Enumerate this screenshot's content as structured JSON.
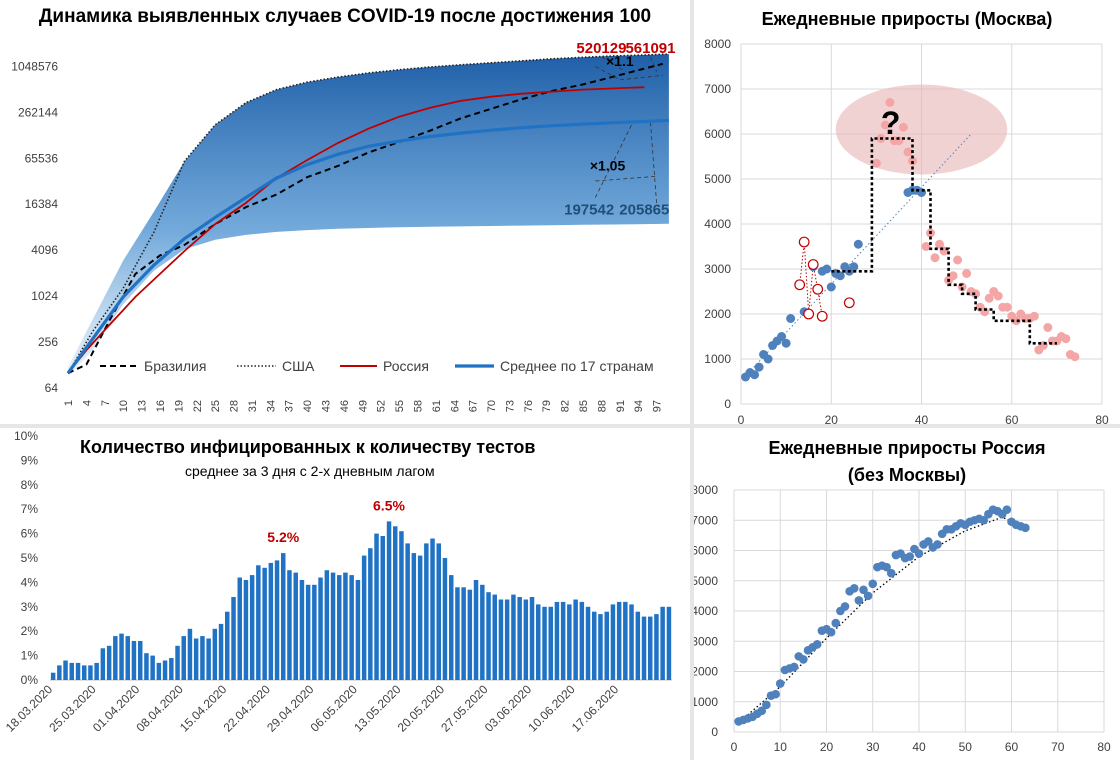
{
  "chart_data": [
    {
      "id": "chart1",
      "type": "line",
      "title": "Динамика выявленных случаев COVID-19 после достижения 100",
      "y_scale": "log2",
      "ylim": [
        64,
        2000000
      ],
      "y_ticks": [
        "64",
        "256",
        "1024",
        "4096",
        "16384",
        "65536",
        "262144",
        "1048576"
      ],
      "y_tick_values": [
        64,
        256,
        1024,
        4096,
        16384,
        65536,
        262144,
        1048576
      ],
      "x_ticks": [
        "1",
        "4",
        "7",
        "10",
        "13",
        "16",
        "19",
        "22",
        "25",
        "28",
        "31",
        "34",
        "37",
        "40",
        "43",
        "46",
        "49",
        "52",
        "55",
        "58",
        "61",
        "64",
        "67",
        "70",
        "73",
        "76",
        "79",
        "82",
        "85",
        "88",
        "91",
        "94",
        "97"
      ],
      "xlim": [
        1,
        100
      ],
      "band": {
        "x": [
          1,
          5,
          10,
          15,
          20,
          25,
          30,
          35,
          40,
          45,
          50,
          55,
          60,
          65,
          70,
          75,
          80,
          85,
          90,
          95,
          99
        ],
        "low": [
          90,
          200,
          800,
          2200,
          4200,
          5600,
          6500,
          7100,
          7500,
          7800,
          8000,
          8200,
          8300,
          8400,
          8500,
          8600,
          8700,
          8800,
          8900,
          9000,
          9100
        ],
        "high": [
          120,
          500,
          3000,
          13000,
          60000,
          180000,
          350000,
          520000,
          650000,
          760000,
          860000,
          950000,
          1030000,
          1100000,
          1170000,
          1240000,
          1320000,
          1380000,
          1440000,
          1480000,
          1520000
        ]
      },
      "series": [
        {
          "name": "Бразилия",
          "color": "#000000",
          "style": "dashed",
          "x": [
            1,
            4,
            8,
            12,
            16,
            20,
            25,
            30,
            35,
            40,
            45,
            50,
            55,
            60,
            65,
            70,
            75,
            80,
            85,
            90,
            95,
            98
          ],
          "y": [
            100,
            130,
            530,
            2000,
            3500,
            4800,
            9000,
            15000,
            22000,
            37000,
            52000,
            78000,
            107000,
            150000,
            218000,
            292000,
            390000,
            500000,
            610000,
            770000,
            980000,
            1130000
          ]
        },
        {
          "name": "США",
          "color": "#222222",
          "style": "dotted",
          "x": [
            1,
            5,
            10,
            15,
            20,
            25,
            30,
            35,
            40,
            45,
            50,
            55,
            60,
            65,
            70,
            75,
            80,
            85,
            90,
            95,
            99
          ],
          "y": [
            100,
            350,
            1300,
            7000,
            60000,
            180000,
            350000,
            520000,
            650000,
            760000,
            860000,
            950000,
            1030000,
            1100000,
            1170000,
            1240000,
            1320000,
            1380000,
            1440000,
            1480000,
            1520000
          ]
        },
        {
          "name": "Россия",
          "color": "#c00000",
          "style": "solid",
          "x": [
            1,
            4,
            8,
            12,
            16,
            20,
            25,
            30,
            35,
            40,
            45,
            50,
            55,
            60,
            65,
            70,
            75,
            80,
            85,
            90,
            95
          ],
          "y": [
            100,
            200,
            450,
            1000,
            2000,
            4000,
            9000,
            17000,
            36000,
            62000,
            104000,
            160000,
            230000,
            300000,
            370000,
            420000,
            460000,
            490000,
            520000,
            540000,
            560000
          ]
        },
        {
          "name": "Среднее по 17 странам",
          "color": "#1f72c4",
          "style": "solid",
          "x": [
            1,
            5,
            10,
            15,
            20,
            25,
            30,
            35,
            40,
            45,
            50,
            55,
            60,
            65,
            70,
            75,
            80,
            85,
            90,
            95,
            99
          ],
          "y": [
            100,
            280,
            1000,
            2600,
            5800,
            11000,
            20000,
            36000,
            54000,
            74000,
            94000,
            110000,
            126000,
            140000,
            153000,
            165000,
            175000,
            184000,
            192000,
            199000,
            206000
          ]
        }
      ],
      "annotations": [
        {
          "text": "520129",
          "color": "#c00000",
          "x": 88,
          "y": 1560000
        },
        {
          "text": "561091",
          "color": "#c00000",
          "x": 96,
          "y": 1560000
        },
        {
          "text": "×1.1",
          "color": "#000000",
          "x": 91,
          "y": 1060000
        },
        {
          "text": "×1.05",
          "color": "#000000",
          "x": 89,
          "y": 45000
        },
        {
          "text": "197542",
          "color": "#1f4e79",
          "x": 86,
          "y": 12000
        },
        {
          "text": "205865",
          "color": "#1f4e79",
          "x": 95,
          "y": 12000
        }
      ],
      "legend_position": "bottom"
    },
    {
      "id": "chart2",
      "type": "scatter",
      "title": "Ежедневные приросты (Москва)",
      "xlim": [
        0,
        80
      ],
      "ylim": [
        0,
        8000
      ],
      "x_ticks": [
        "0",
        "20",
        "40",
        "60",
        "80"
      ],
      "x_tick_values": [
        0,
        20,
        40,
        60,
        80
      ],
      "y_ticks": [
        "0",
        "1000",
        "2000",
        "3000",
        "4000",
        "5000",
        "6000",
        "7000",
        "8000"
      ],
      "y_tick_values": [
        0,
        1000,
        2000,
        3000,
        4000,
        5000,
        6000,
        7000,
        8000
      ],
      "blue_points": [
        [
          1,
          600
        ],
        [
          2,
          700
        ],
        [
          3,
          650
        ],
        [
          4,
          820
        ],
        [
          5,
          1100
        ],
        [
          6,
          1000
        ],
        [
          7,
          1300
        ],
        [
          8,
          1400
        ],
        [
          9,
          1500
        ],
        [
          10,
          1350
        ],
        [
          11,
          1900
        ],
        [
          14,
          2050
        ],
        [
          16,
          3050
        ],
        [
          18,
          2950
        ],
        [
          19,
          3000
        ],
        [
          20,
          2600
        ],
        [
          21,
          2900
        ],
        [
          22,
          2850
        ],
        [
          23,
          3050
        ],
        [
          24,
          2950
        ],
        [
          25,
          3050
        ],
        [
          26,
          3550
        ],
        [
          37,
          4700
        ],
        [
          38,
          4750
        ],
        [
          39,
          4750
        ],
        [
          40,
          4700
        ]
      ],
      "pink_points": [
        [
          30,
          5350
        ],
        [
          31,
          5900
        ],
        [
          32,
          6200
        ],
        [
          33,
          6700
        ],
        [
          34,
          5850
        ],
        [
          35,
          5850
        ],
        [
          36,
          6150
        ],
        [
          37,
          5600
        ],
        [
          38,
          5400
        ],
        [
          41,
          3500
        ],
        [
          42,
          3800
        ],
        [
          43,
          3250
        ],
        [
          44,
          3550
        ],
        [
          45,
          3400
        ],
        [
          46,
          2750
        ],
        [
          47,
          2850
        ],
        [
          48,
          3200
        ],
        [
          49,
          2600
        ],
        [
          50,
          2900
        ],
        [
          51,
          2500
        ],
        [
          52,
          2450
        ],
        [
          53,
          2150
        ],
        [
          54,
          2050
        ],
        [
          55,
          2350
        ],
        [
          56,
          2500
        ],
        [
          57,
          2400
        ],
        [
          58,
          2150
        ],
        [
          59,
          2150
        ],
        [
          60,
          1950
        ],
        [
          61,
          1850
        ],
        [
          62,
          2000
        ],
        [
          63,
          1900
        ],
        [
          64,
          1900
        ],
        [
          65,
          1950
        ],
        [
          66,
          1200
        ],
        [
          67,
          1300
        ],
        [
          68,
          1700
        ],
        [
          69,
          1400
        ],
        [
          70,
          1400
        ],
        [
          71,
          1500
        ],
        [
          72,
          1450
        ],
        [
          73,
          1100
        ],
        [
          74,
          1050
        ]
      ],
      "red_hollow_points": [
        [
          13,
          2650
        ],
        [
          14,
          3600
        ],
        [
          15,
          2000
        ],
        [
          16,
          3100
        ],
        [
          17,
          2550
        ],
        [
          18,
          1950
        ],
        [
          24,
          2250
        ]
      ],
      "step_line": [
        [
          20,
          2950
        ],
        [
          29,
          2950
        ],
        [
          29,
          5900
        ],
        [
          38,
          5900
        ],
        [
          38,
          4750
        ],
        [
          42,
          4750
        ],
        [
          42,
          3450
        ],
        [
          46,
          3450
        ],
        [
          46,
          2650
        ],
        [
          49,
          2650
        ],
        [
          49,
          2450
        ],
        [
          52,
          2450
        ],
        [
          52,
          2100
        ],
        [
          56,
          2100
        ],
        [
          56,
          1850
        ],
        [
          64,
          1850
        ],
        [
          64,
          1350
        ],
        [
          70,
          1350
        ]
      ],
      "trend_line": [
        [
          1,
          620
        ],
        [
          51,
          6000
        ]
      ],
      "annotations": [
        {
          "text": "?",
          "x": 31,
          "y": 6000
        }
      ],
      "ellipse": {
        "cx": 40,
        "cy": 6100,
        "rx": 19,
        "ry": 1000
      }
    },
    {
      "id": "chart3",
      "type": "bar",
      "title": "Количество инфицированных к количеству тестов",
      "subtitle": "среднее за 3 дня с 2-х дневным лагом",
      "ylim": [
        0,
        10
      ],
      "y_ticks": [
        "0%",
        "1%",
        "2%",
        "3%",
        "4%",
        "5%",
        "6%",
        "7%",
        "8%",
        "9%",
        "10%"
      ],
      "x_ticks": [
        "18.03.2020",
        "25.03.2020",
        "01.04.2020",
        "08.04.2020",
        "15.04.2020",
        "22.04.2020",
        "29.04.2020",
        "06.05.2020",
        "13.05.2020",
        "20.05.2020",
        "27.05.2020",
        "03.06.2020",
        "10.06.2020",
        "17.06.2020"
      ],
      "values": [
        0.3,
        0.6,
        0.8,
        0.7,
        0.7,
        0.6,
        0.6,
        0.7,
        1.3,
        1.4,
        1.8,
        1.9,
        1.8,
        1.6,
        1.6,
        1.1,
        1.0,
        0.7,
        0.8,
        0.9,
        1.4,
        1.8,
        2.1,
        1.7,
        1.8,
        1.7,
        2.1,
        2.3,
        2.8,
        3.4,
        4.2,
        4.1,
        4.3,
        4.7,
        4.6,
        4.8,
        4.9,
        5.2,
        4.5,
        4.4,
        4.1,
        3.9,
        3.9,
        4.2,
        4.5,
        4.4,
        4.3,
        4.4,
        4.3,
        4.1,
        5.1,
        5.4,
        6.0,
        5.9,
        6.5,
        6.3,
        6.1,
        5.6,
        5.2,
        5.1,
        5.6,
        5.8,
        5.6,
        5.0,
        4.3,
        3.8,
        3.8,
        3.7,
        4.1,
        3.9,
        3.6,
        3.5,
        3.3,
        3.3,
        3.5,
        3.4,
        3.3,
        3.4,
        3.1,
        3.0,
        3.0,
        3.2,
        3.2,
        3.1,
        3.3,
        3.2,
        3.0,
        2.8,
        2.7,
        2.8,
        3.1,
        3.2,
        3.2,
        3.1,
        2.8,
        2.6,
        2.6,
        2.7,
        3.0,
        3.0
      ],
      "color": "#1f72c4",
      "annotations": [
        {
          "text": "5.2%",
          "index": 37,
          "value": 5.2
        },
        {
          "text": "6.5%",
          "index": 54,
          "value": 6.5
        }
      ]
    },
    {
      "id": "chart4",
      "type": "scatter",
      "title": "Ежедневные приросты Россия",
      "subtitle": "(без Москвы)",
      "xlim": [
        0,
        80
      ],
      "ylim": [
        0,
        8000
      ],
      "x_ticks": [
        "0",
        "10",
        "20",
        "30",
        "40",
        "50",
        "60",
        "70",
        "80"
      ],
      "x_tick_values": [
        0,
        10,
        20,
        30,
        40,
        50,
        60,
        70,
        80
      ],
      "y_ticks": [
        "0",
        "1000",
        "2000",
        "3000",
        "4000",
        "5000",
        "6000",
        "7000",
        "8000"
      ],
      "y_tick_values": [
        0,
        1000,
        2000,
        3000,
        4000,
        5000,
        6000,
        7000,
        8000
      ],
      "points": [
        [
          1,
          350
        ],
        [
          2,
          400
        ],
        [
          3,
          450
        ],
        [
          4,
          500
        ],
        [
          5,
          600
        ],
        [
          6,
          700
        ],
        [
          7,
          900
        ],
        [
          8,
          1200
        ],
        [
          9,
          1250
        ],
        [
          10,
          1600
        ],
        [
          11,
          2050
        ],
        [
          12,
          2100
        ],
        [
          13,
          2150
        ],
        [
          14,
          2500
        ],
        [
          15,
          2400
        ],
        [
          16,
          2700
        ],
        [
          17,
          2800
        ],
        [
          18,
          2900
        ],
        [
          19,
          3350
        ],
        [
          20,
          3400
        ],
        [
          21,
          3300
        ],
        [
          22,
          3600
        ],
        [
          23,
          4000
        ],
        [
          24,
          4150
        ],
        [
          25,
          4650
        ],
        [
          26,
          4750
        ],
        [
          27,
          4350
        ],
        [
          28,
          4700
        ],
        [
          29,
          4500
        ],
        [
          30,
          4900
        ],
        [
          31,
          5450
        ],
        [
          32,
          5500
        ],
        [
          33,
          5450
        ],
        [
          34,
          5250
        ],
        [
          35,
          5850
        ],
        [
          36,
          5900
        ],
        [
          37,
          5750
        ],
        [
          38,
          5800
        ],
        [
          39,
          6050
        ],
        [
          40,
          5900
        ],
        [
          41,
          6200
        ],
        [
          42,
          6300
        ],
        [
          43,
          6100
        ],
        [
          44,
          6200
        ],
        [
          45,
          6550
        ],
        [
          46,
          6700
        ],
        [
          47,
          6700
        ],
        [
          48,
          6800
        ],
        [
          49,
          6900
        ],
        [
          50,
          6850
        ],
        [
          51,
          6950
        ],
        [
          52,
          7000
        ],
        [
          53,
          7050
        ],
        [
          54,
          7000
        ],
        [
          55,
          7200
        ],
        [
          56,
          7350
        ],
        [
          57,
          7300
        ],
        [
          58,
          7200
        ],
        [
          59,
          7350
        ],
        [
          60,
          6950
        ],
        [
          61,
          6850
        ],
        [
          62,
          6800
        ],
        [
          63,
          6750
        ]
      ],
      "trend": [
        [
          1,
          300
        ],
        [
          10,
          1500
        ],
        [
          20,
          3100
        ],
        [
          30,
          4600
        ],
        [
          40,
          5800
        ],
        [
          50,
          6650
        ],
        [
          58,
          7100
        ],
        [
          63,
          6750
        ]
      ],
      "color": "#4f81bd"
    }
  ]
}
